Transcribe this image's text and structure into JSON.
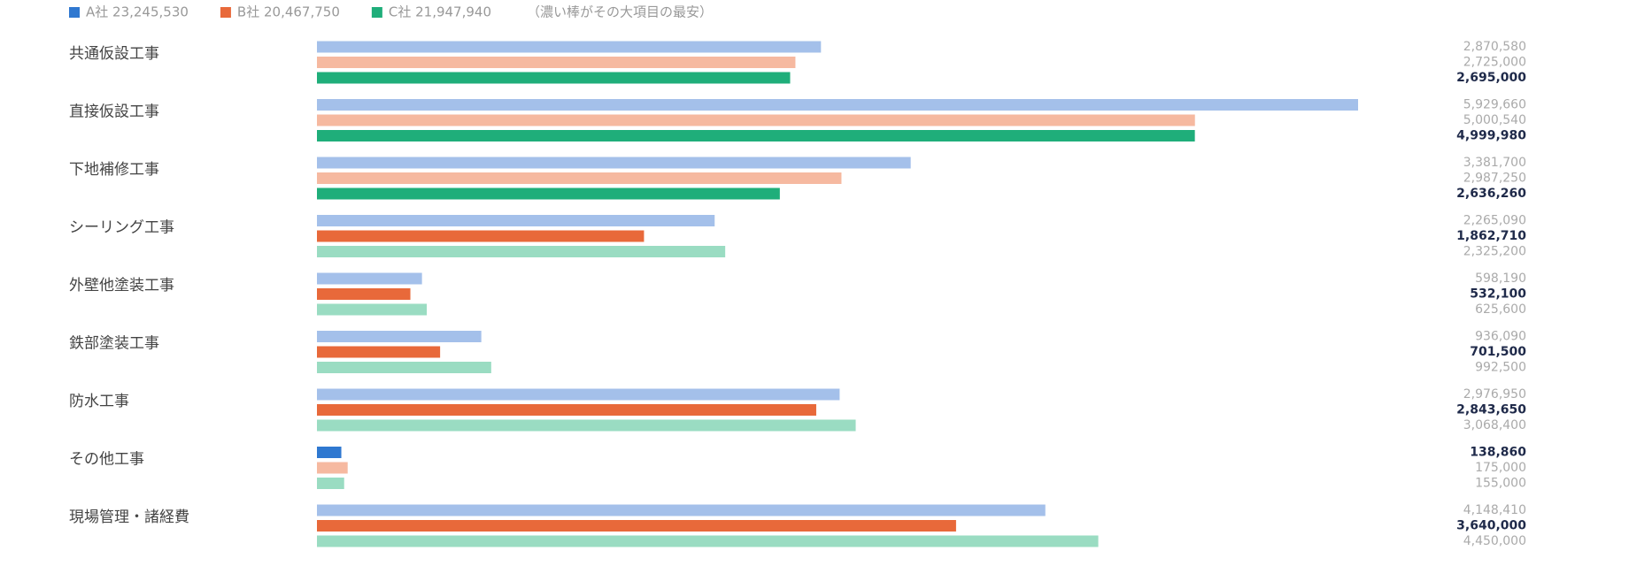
{
  "chart_data": {
    "type": "grouped-hbar",
    "note": "（濃い棒がその大項目の最安）",
    "categories": [
      "共通仮設工事",
      "直接仮設工事",
      "下地補修工事",
      "シーリング工事",
      "外壁他塗装工事",
      "鉄部塗装工事",
      "防水工事",
      "その他工事",
      "現場管理・諸経費"
    ],
    "series": [
      {
        "name": "A社 23,245,530",
        "color": "#2f78d0",
        "light_color": "#a4c0ea",
        "values": [
          2870580,
          5929660,
          3381700,
          2265090,
          598190,
          936090,
          2976950,
          138860,
          4148410
        ],
        "value_labels": [
          "2,870,580",
          "5,929,660",
          "3,381,700",
          "2,265,090",
          "598,190",
          "936,090",
          "2,976,950",
          "138,860",
          "4,148,410"
        ]
      },
      {
        "name": "B社 20,467,750",
        "color": "#e8693a",
        "light_color": "#f6b9a0",
        "values": [
          2725000,
          5000540,
          2987250,
          1862710,
          532100,
          701500,
          2843650,
          175000,
          3640000
        ],
        "value_labels": [
          "2,725,000",
          "5,000,540",
          "2,987,250",
          "1,862,710",
          "532,100",
          "701,500",
          "2,843,650",
          "175,000",
          "3,640,000"
        ]
      },
      {
        "name": "C社 21,947,940",
        "color": "#1fae7a",
        "light_color": "#9adcc2",
        "values": [
          2695000,
          4999980,
          2636260,
          2325200,
          625600,
          992500,
          3068400,
          155000,
          4450000
        ],
        "value_labels": [
          "2,695,000",
          "4,999,980",
          "2,636,260",
          "2,325,200",
          "625,600",
          "992,500",
          "3,068,400",
          "155,000",
          "4,450,000"
        ]
      }
    ]
  }
}
